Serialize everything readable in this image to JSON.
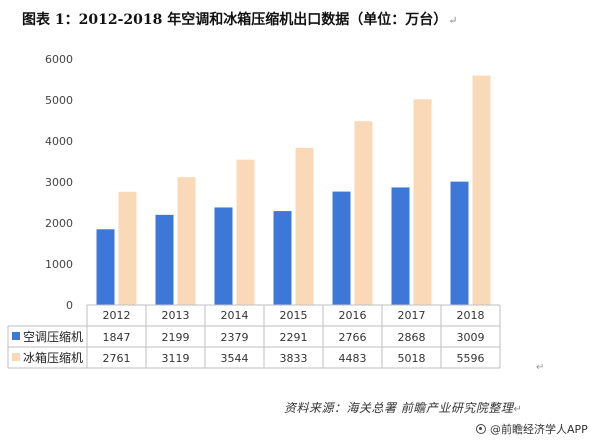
{
  "title": "图表 1：2012-2018 年空调和冰箱压缩机出口数据（单位：万台）",
  "title_mark": "↵",
  "source": "资料来源：海关总署 前瞻产业研究院整理",
  "source_mark": "↵",
  "stray_mark": "↵",
  "watermark": "@前瞻经济学人APP",
  "chart_data": {
    "type": "bar",
    "categories": [
      "2012",
      "2013",
      "2014",
      "2015",
      "2016",
      "2017",
      "2018"
    ],
    "series": [
      {
        "name": "空调压缩机",
        "color": "#3d78d8",
        "values": [
          1847,
          2199,
          2379,
          2291,
          2766,
          2868,
          3009
        ]
      },
      {
        "name": "冰箱压缩机",
        "color": "#fad9b9",
        "values": [
          2761,
          3119,
          3544,
          3833,
          4483,
          5018,
          5596
        ]
      }
    ],
    "yticks": [
      0,
      1000,
      2000,
      3000,
      4000,
      5000,
      6000
    ],
    "ylim": [
      0,
      6000
    ],
    "grid": false,
    "data_table": true
  }
}
